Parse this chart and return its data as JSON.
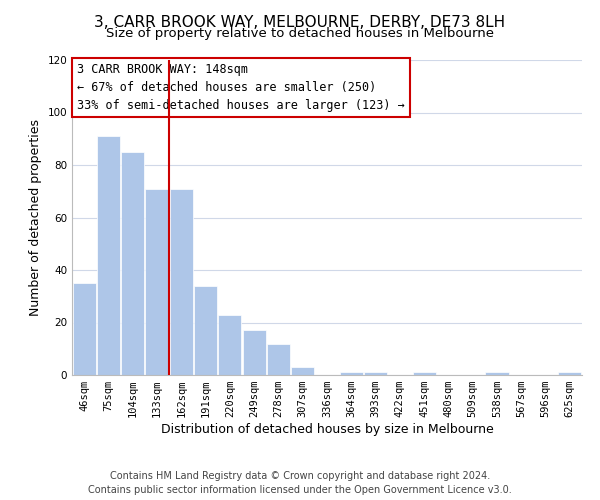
{
  "title": "3, CARR BROOK WAY, MELBOURNE, DERBY, DE73 8LH",
  "subtitle": "Size of property relative to detached houses in Melbourne",
  "xlabel": "Distribution of detached houses by size in Melbourne",
  "ylabel": "Number of detached properties",
  "bar_labels": [
    "46sqm",
    "75sqm",
    "104sqm",
    "133sqm",
    "162sqm",
    "191sqm",
    "220sqm",
    "249sqm",
    "278sqm",
    "307sqm",
    "336sqm",
    "364sqm",
    "393sqm",
    "422sqm",
    "451sqm",
    "480sqm",
    "509sqm",
    "538sqm",
    "567sqm",
    "596sqm",
    "625sqm"
  ],
  "bar_values": [
    35,
    91,
    85,
    71,
    71,
    34,
    23,
    17,
    12,
    3,
    0,
    1,
    1,
    0,
    1,
    0,
    0,
    1,
    0,
    0,
    1
  ],
  "bar_color": "#aec6e8",
  "vline_x": 3.5,
  "vline_color": "#cc0000",
  "annotation_lines": [
    "3 CARR BROOK WAY: 148sqm",
    "← 67% of detached houses are smaller (250)",
    "33% of semi-detached houses are larger (123) →"
  ],
  "ylim": [
    0,
    120
  ],
  "yticks": [
    0,
    20,
    40,
    60,
    80,
    100,
    120
  ],
  "footer_line1": "Contains HM Land Registry data © Crown copyright and database right 2024.",
  "footer_line2": "Contains public sector information licensed under the Open Government Licence v3.0.",
  "background_color": "#ffffff",
  "grid_color": "#d0d8e8",
  "title_fontsize": 11,
  "subtitle_fontsize": 9.5,
  "axis_label_fontsize": 9,
  "tick_fontsize": 7.5,
  "annotation_fontsize": 8.5,
  "footer_fontsize": 7
}
